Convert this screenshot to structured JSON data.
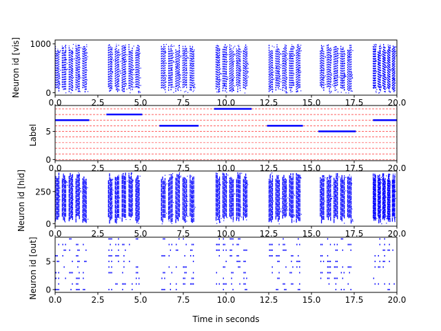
{
  "chart_data": [
    {
      "type": "scatter",
      "panel": "vis",
      "ylabel": "Neuron id [vis]",
      "xlim": [
        0,
        20
      ],
      "ylim": [
        -50,
        1080
      ],
      "xticks": [
        "0.0",
        "2.5",
        "5.0",
        "7.5",
        "10.0",
        "12.5",
        "15.0",
        "17.5",
        "20.0"
      ],
      "yticks": [
        0,
        1000
      ],
      "color": "#0000ff",
      "presentation_intervals": [
        [
          0.0,
          2.0
        ],
        [
          3.1,
          5.1
        ],
        [
          6.2,
          8.3
        ],
        [
          9.4,
          11.4
        ],
        [
          12.5,
          14.5
        ],
        [
          15.5,
          17.5
        ],
        [
          18.6,
          20.0
        ]
      ],
      "bursts_per_interval": 5,
      "id_range": [
        0,
        1000
      ]
    },
    {
      "type": "line",
      "panel": "label",
      "ylabel": "Label",
      "xlim": [
        0,
        20
      ],
      "ylim": [
        -0.2,
        9.6
      ],
      "xticks": [
        "0.0",
        "2.5",
        "5.0",
        "7.5",
        "10.0",
        "12.5",
        "15.0",
        "17.5",
        "20.0"
      ],
      "yticks": [
        0,
        5
      ],
      "grid": "horizontal red dashed at each label 0-9",
      "color": "#0000ff",
      "grid_color": "#ff0000",
      "segments": [
        {
          "x": [
            0.0,
            2.0
          ],
          "y": 7
        },
        {
          "x": [
            3.0,
            5.1
          ],
          "y": 8
        },
        {
          "x": [
            6.1,
            8.4
          ],
          "y": 6
        },
        {
          "x": [
            9.3,
            11.5
          ],
          "y": 9
        },
        {
          "x": [
            12.4,
            14.5
          ],
          "y": 6
        },
        {
          "x": [
            15.4,
            17.6
          ],
          "y": 5
        },
        {
          "x": [
            18.6,
            20.0
          ],
          "y": 7
        }
      ]
    },
    {
      "type": "scatter",
      "panel": "hid",
      "ylabel": "Neuron id [hid]",
      "xlim": [
        0,
        20
      ],
      "ylim": [
        -20,
        410
      ],
      "xticks": [
        "0.0",
        "2.5",
        "5.0",
        "7.5",
        "10.0",
        "12.5",
        "15.0",
        "17.5",
        "20.0"
      ],
      "yticks": [
        0,
        250
      ],
      "color": "#0000ff",
      "presentation_intervals": [
        [
          0.0,
          2.0
        ],
        [
          3.1,
          5.1
        ],
        [
          6.2,
          8.3
        ],
        [
          9.4,
          11.4
        ],
        [
          12.5,
          14.5
        ],
        [
          15.5,
          17.5
        ],
        [
          18.6,
          20.0
        ]
      ],
      "bursts_per_interval": 5,
      "id_range": [
        0,
        400
      ]
    },
    {
      "type": "scatter",
      "panel": "out",
      "ylabel": "Neuron id [out]",
      "xlabel": "Time in seconds",
      "xlim": [
        0,
        20
      ],
      "ylim": [
        -0.5,
        9.3
      ],
      "xticks": [
        "0.0",
        "2.5",
        "5.0",
        "7.5",
        "10.0",
        "12.5",
        "15.0",
        "17.5",
        "20.0"
      ],
      "yticks": [
        0,
        5
      ],
      "color": "#0000ff",
      "presentation_intervals": [
        [
          0.0,
          2.0
        ],
        [
          3.1,
          5.1
        ],
        [
          6.2,
          8.3
        ],
        [
          9.4,
          11.4
        ],
        [
          12.5,
          14.5
        ],
        [
          15.5,
          17.5
        ],
        [
          18.6,
          20.0
        ]
      ],
      "bursts_per_interval": 5,
      "id_range": [
        0,
        9
      ]
    }
  ]
}
